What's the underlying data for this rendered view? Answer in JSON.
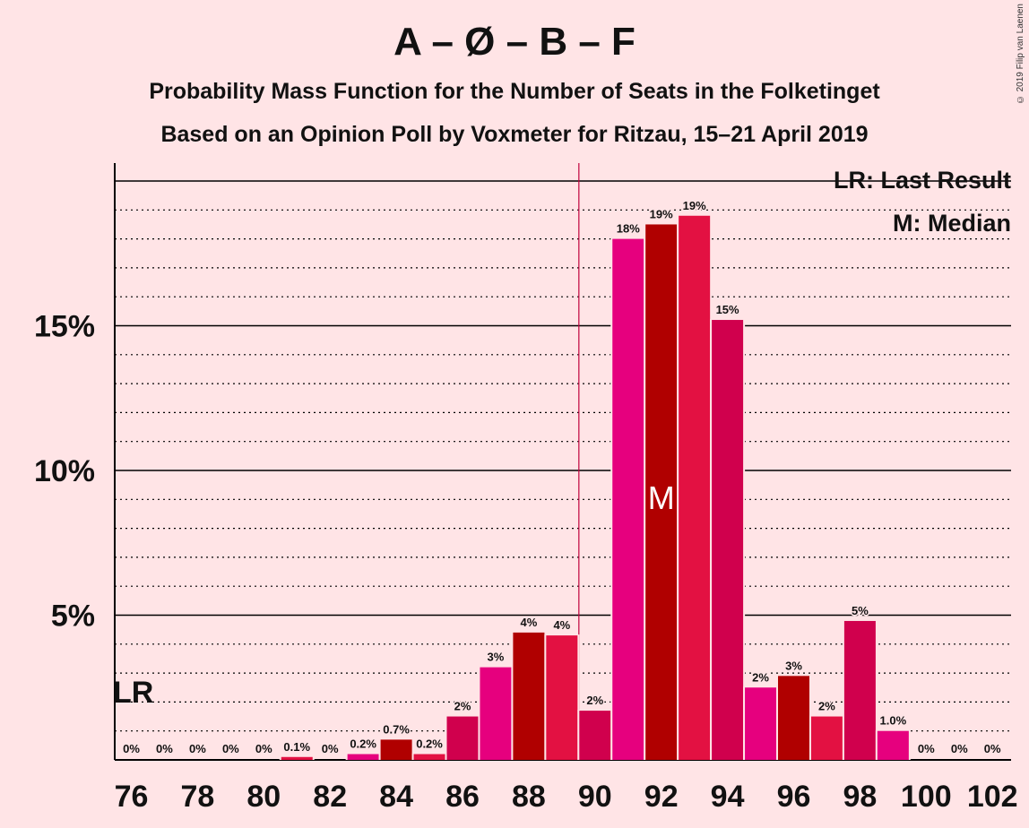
{
  "title": "A – Ø – B – F",
  "subtitle": "Probability Mass Function for the Number of Seats in the Folketinget",
  "subtitle2": "Based on an Opinion Poll by Voxmeter for Ritzau, 15–21 April 2019",
  "copyright": "© 2019 Filip van Laenen",
  "legend": {
    "lr": "LR: Last Result",
    "median": "M: Median",
    "placement": "top-right"
  },
  "colors": {
    "background": "#FFE4E6",
    "palette": [
      "#B00000",
      "#E31142",
      "#D0004D",
      "#E6007E"
    ],
    "majority_line": "#C0003C"
  },
  "chart_data": {
    "type": "bar",
    "x": [
      76,
      77,
      78,
      79,
      80,
      81,
      82,
      83,
      84,
      85,
      86,
      87,
      88,
      89,
      90,
      91,
      92,
      93,
      94,
      95,
      96,
      97,
      98,
      99,
      100,
      101,
      102
    ],
    "values": [
      0,
      0,
      0,
      0,
      0,
      0.1,
      0,
      0.2,
      0.7,
      0.2,
      1.5,
      3.2,
      4.4,
      4.3,
      1.7,
      18.0,
      18.5,
      18.8,
      15.2,
      2.5,
      2.9,
      1.5,
      4.8,
      1.0,
      0,
      0,
      0
    ],
    "labels": [
      "0%",
      "0%",
      "0%",
      "0%",
      "0%",
      "0.1%",
      "0%",
      "0.2%",
      "0.7%",
      "0.2%",
      "2%",
      "3%",
      "4%",
      "4%",
      "2%",
      "18%",
      "19%",
      "19%",
      "15%",
      "2%",
      "3%",
      "2%",
      "5%",
      "1.0%",
      "0%",
      "0%",
      "0%"
    ],
    "xticks": [
      "76",
      "78",
      "80",
      "82",
      "84",
      "86",
      "88",
      "90",
      "92",
      "94",
      "96",
      "98",
      "100",
      "102"
    ],
    "yticks": [
      "5%",
      "10%",
      "15%"
    ],
    "ylim": [
      0,
      20.6
    ],
    "grid": true,
    "last_result": {
      "seat": 76,
      "label": "LR"
    },
    "median": {
      "seat": 92,
      "label": "M"
    },
    "majority_seat": 90
  }
}
